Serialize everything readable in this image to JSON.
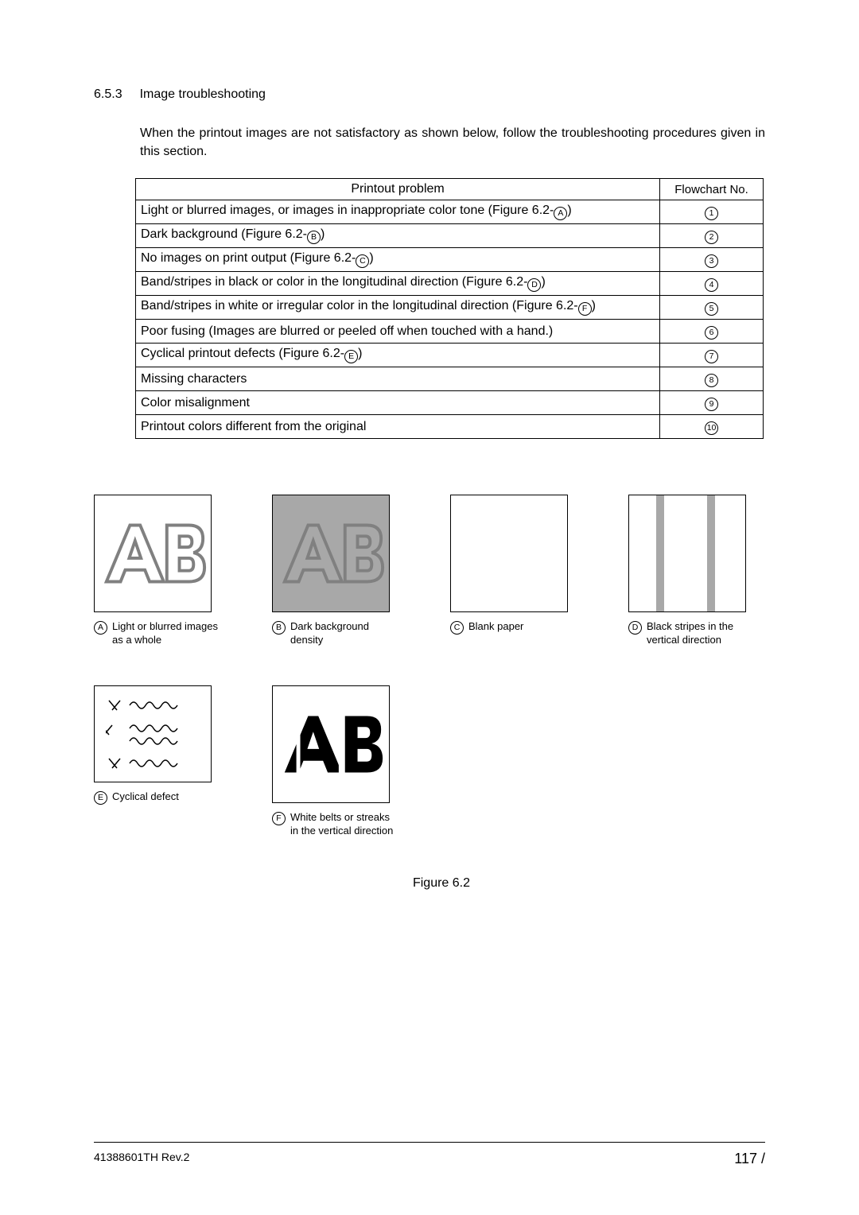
{
  "section": {
    "number": "6.5.3",
    "title": "Image troubleshooting"
  },
  "intro": "When the printout images are not satisfactory as shown below, follow the troubleshooting procedures given in this section.",
  "table": {
    "headers": [
      "Printout problem",
      "Flowchart No."
    ],
    "rows": [
      {
        "problem_pre": "Light or blurred images, or images in inappropriate color tone (Figure 6.2-",
        "ref": "A",
        "problem_post": ")",
        "flow": "1"
      },
      {
        "problem_pre": "Dark background (Figure 6.2-",
        "ref": "B",
        "problem_post": ")",
        "flow": "2"
      },
      {
        "problem_pre": "No images on print output (Figure 6.2-",
        "ref": "C",
        "problem_post": ")",
        "flow": "3"
      },
      {
        "problem_pre": "Band/stripes in black or color in the longitudinal direction (Figure 6.2-",
        "ref": "D",
        "problem_post": ")",
        "flow": "4"
      },
      {
        "problem_pre": "Band/stripes in white or irregular color in the longitudinal direction (Figure 6.2-",
        "ref": "F",
        "problem_post": ")",
        "flow": "5"
      },
      {
        "problem_pre": "Poor fusing (Images are blurred or peeled off when touched with a hand.)",
        "ref": "",
        "problem_post": "",
        "flow": "6"
      },
      {
        "problem_pre": "Cyclical printout defects (Figure 6.2-",
        "ref": "E",
        "problem_post": ")",
        "flow": "7"
      },
      {
        "problem_pre": "Missing characters",
        "ref": "",
        "problem_post": "",
        "flow": "8"
      },
      {
        "problem_pre": "Color misalignment",
        "ref": "",
        "problem_post": "",
        "flow": "9"
      },
      {
        "problem_pre": "Printout colors different from the original",
        "ref": "",
        "problem_post": "",
        "flow": "10"
      }
    ]
  },
  "figures_row1": [
    {
      "letter": "A",
      "caption": "Light or blurred images as a whole"
    },
    {
      "letter": "B",
      "caption": "Dark background density"
    },
    {
      "letter": "C",
      "caption": "Blank paper"
    },
    {
      "letter": "D",
      "caption": "Black stripes in the vertical direction"
    }
  ],
  "figures_row2": [
    {
      "letter": "E",
      "caption": "Cyclical defect"
    },
    {
      "letter": "F",
      "caption": "White belts or streaks in the vertical direction"
    }
  ],
  "figure_caption": "Figure 6.2",
  "footer": {
    "doc": "41388601TH  Rev.2",
    "page": "117 /"
  },
  "colors": {
    "light_gray": "#d0d0d0",
    "mid_gray": "#a8a8a8",
    "dark_gray": "#808080"
  }
}
